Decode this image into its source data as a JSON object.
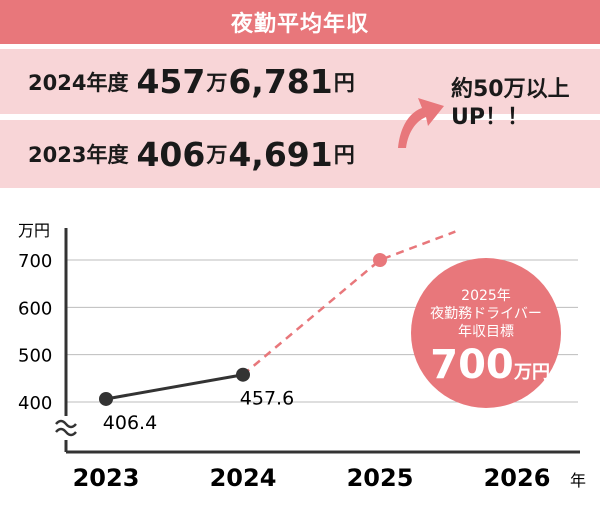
{
  "header": {
    "title": "夜勤平均年収"
  },
  "rows": [
    {
      "year": "2024年度",
      "man": "457",
      "man_unit": "万",
      "rest": "6,781",
      "yen_unit": "円"
    },
    {
      "year": "2023年度",
      "man": "406",
      "man_unit": "万",
      "rest": "4,691",
      "yen_unit": "円"
    }
  ],
  "callout": {
    "line1": "約50万以上",
    "line2": "UP！！"
  },
  "colors": {
    "accent": "#e8777b",
    "row_bg": "#f8d5d7",
    "dark": "#333333"
  },
  "chart_data": {
    "type": "line",
    "ylabel": "万円",
    "yticks": [
      400,
      500,
      600,
      700
    ],
    "ylim": [
      400,
      700
    ],
    "x": [
      "2023",
      "2024",
      "2025",
      "2026"
    ],
    "x_unit": "年",
    "series": [
      {
        "points": [
          {
            "x": "2023",
            "y": 406.4,
            "label": "406.4"
          },
          {
            "x": "2024",
            "y": 457.6,
            "label": "457.6"
          }
        ]
      },
      {
        "points": [
          {
            "x": "2024",
            "y": 457.6
          },
          {
            "x": "2025",
            "y": 700
          }
        ],
        "dashed": true,
        "extends_beyond": true
      }
    ],
    "target_bubble": {
      "line1": "2025年",
      "line2": "夜勤務ドライバー",
      "line3": "年収目標",
      "value": "700",
      "unit": "万円"
    },
    "axis_break": true
  }
}
